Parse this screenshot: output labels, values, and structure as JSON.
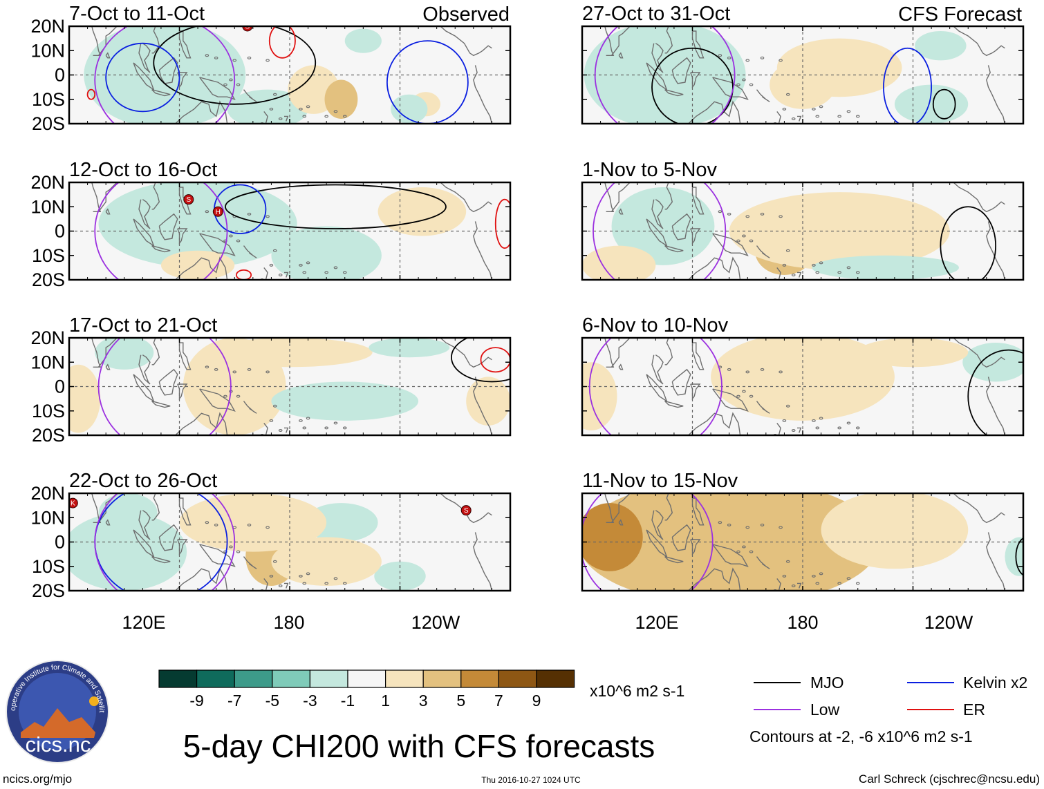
{
  "title": "5-day CHI200 with CFS forecasts",
  "headers": {
    "observed": "Observed",
    "forecast": "CFS Forecast"
  },
  "footer": {
    "url": "ncics.org/mjo",
    "timestamp": "Thu 2016-10-27 1024 UTC",
    "author": "Carl Schreck (cjschrec@ncsu.edu)",
    "logo_text": "cics.nc",
    "logo_ring_text": "Cooperative Institute for Climate and Satellites"
  },
  "colors": {
    "mjo": "#000000",
    "kelvin": "#0a1fe0",
    "low": "#9b30e0",
    "er": "#e01010",
    "coast": "#6e6e6e"
  },
  "chart_data": {
    "type": "heatmap",
    "variable": "5-day mean 200-hPa velocity potential (CHI200) anomaly",
    "units": "x10^6 m2 s-1",
    "lon_range": [
      60,
      300
    ],
    "lat_range": [
      -20,
      20
    ],
    "lat_ticks": [
      "20N",
      "10N",
      "0",
      "10S",
      "20S"
    ],
    "lat_tick_values": [
      20,
      10,
      0,
      -10,
      -20
    ],
    "lon_ticks": [
      "120E",
      "180",
      "120W"
    ],
    "lon_tick_values": [
      120,
      180,
      240
    ],
    "colorbar": {
      "ticks": [
        "-9",
        "-7",
        "-5",
        "-3",
        "-1",
        "1",
        "3",
        "5",
        "7",
        "9"
      ],
      "bounds": [
        -11,
        -9,
        -7,
        -5,
        -3,
        -1,
        1,
        3,
        5,
        7,
        9,
        11
      ],
      "colors": [
        "#053b31",
        "#0f6b5c",
        "#3d9b8a",
        "#7fcbb9",
        "#c4e8de",
        "#f6f6f6",
        "#f6e4bd",
        "#e3c17f",
        "#c48a38",
        "#8e5714",
        "#553003"
      ],
      "units_label": "x10^6 m2 s-1"
    },
    "legend": [
      {
        "name": "MJO",
        "color": "#000000"
      },
      {
        "name": "Kelvin x2",
        "color": "#0a1fe0"
      },
      {
        "name": "Low",
        "color": "#9b30e0"
      },
      {
        "name": "ER",
        "color": "#e01010"
      }
    ],
    "contour_note": "Contours at -2, -6 x10^6 m2 s-1",
    "panels": [
      {
        "title": "7-Oct to 11-Oct",
        "source": "observed",
        "blobs": [
          {
            "lon": 95,
            "lat": -8,
            "a": 14,
            "b": 9,
            "value": -9
          },
          {
            "lon": 100,
            "lat": 2,
            "a": 24,
            "b": 15,
            "value": -6
          },
          {
            "lon": 120,
            "lat": 10,
            "a": 10,
            "b": 10,
            "value": -6
          },
          {
            "lon": 112,
            "lat": 0,
            "a": 44,
            "b": 22,
            "value": -3
          },
          {
            "lon": 168,
            "lat": -14,
            "a": 22,
            "b": 8,
            "value": -3
          },
          {
            "lon": 220,
            "lat": 14,
            "a": 10,
            "b": 5,
            "value": -2
          },
          {
            "lon": 193,
            "lat": -6,
            "a": 14,
            "b": 10,
            "value": 2
          },
          {
            "lon": 208,
            "lat": -10,
            "a": 9,
            "b": 8,
            "value": 4
          },
          {
            "lon": 254,
            "lat": -12,
            "a": 8,
            "b": 5,
            "value": 2
          },
          {
            "lon": 245,
            "lat": -14,
            "a": 10,
            "b": 6,
            "value": -2
          }
        ],
        "contours": [
          {
            "kind": "mjo",
            "lon": 150,
            "lat": 5,
            "a": 44,
            "b": 17
          },
          {
            "kind": "kelvin",
            "lon": 100,
            "lat": -1,
            "a": 20,
            "b": 14
          },
          {
            "kind": "kelvin",
            "lon": 255,
            "lat": -3,
            "a": 22,
            "b": 17
          },
          {
            "kind": "low",
            "lon": 112,
            "lat": -2,
            "a": 38,
            "b": 26
          },
          {
            "kind": "er",
            "lon": 176,
            "lat": 14,
            "a": 7,
            "b": 7
          },
          {
            "kind": "er",
            "lon": 72,
            "lat": -8,
            "a": 2,
            "b": 2
          }
        ],
        "storms": [
          {
            "lon": 157,
            "lat": 20,
            "label": "S"
          }
        ]
      },
      {
        "title": "12-Oct to 16-Oct",
        "source": "observed",
        "blobs": [
          {
            "lon": 127,
            "lat": 10,
            "a": 9,
            "b": 8,
            "value": -9
          },
          {
            "lon": 141,
            "lat": 9,
            "a": 9,
            "b": 7,
            "value": -9
          },
          {
            "lon": 132,
            "lat": 9,
            "a": 26,
            "b": 11,
            "value": -6
          },
          {
            "lon": 130,
            "lat": 3,
            "a": 54,
            "b": 18,
            "value": -3
          },
          {
            "lon": 204,
            "lat": -14,
            "a": 18,
            "b": 7,
            "value": -5
          },
          {
            "lon": 200,
            "lat": -10,
            "a": 30,
            "b": 12,
            "value": -3
          },
          {
            "lon": 255,
            "lat": 5,
            "a": 12,
            "b": 6,
            "value": 3
          },
          {
            "lon": 252,
            "lat": 8,
            "a": 24,
            "b": 10,
            "value": 2
          },
          {
            "lon": 130,
            "lat": -14,
            "a": 20,
            "b": 6,
            "value": 2
          }
        ],
        "contours": [
          {
            "kind": "mjo",
            "lon": 205,
            "lat": 10,
            "a": 60,
            "b": 9
          },
          {
            "kind": "kelvin",
            "lon": 153,
            "lat": 9,
            "a": 14,
            "b": 10
          },
          {
            "kind": "low",
            "lon": 110,
            "lat": 0,
            "a": 36,
            "b": 26
          },
          {
            "kind": "er",
            "lon": 297,
            "lat": 3,
            "a": 5,
            "b": 10
          },
          {
            "kind": "er",
            "lon": 155,
            "lat": -18,
            "a": 4,
            "b": 2
          }
        ],
        "storms": [
          {
            "lon": 125,
            "lat": 13,
            "label": "S"
          },
          {
            "lon": 141,
            "lat": 8,
            "label": "H"
          }
        ]
      },
      {
        "title": "17-Oct to 21-Oct",
        "source": "observed",
        "blobs": [
          {
            "lon": 160,
            "lat": -5,
            "a": 12,
            "b": 12,
            "value": 3
          },
          {
            "lon": 150,
            "lat": 0,
            "a": 28,
            "b": 20,
            "value": 2
          },
          {
            "lon": 180,
            "lat": 14,
            "a": 45,
            "b": 6,
            "value": 1.5
          },
          {
            "lon": 288,
            "lat": -6,
            "a": 12,
            "b": 10,
            "value": 2
          },
          {
            "lon": 65,
            "lat": -5,
            "a": 12,
            "b": 14,
            "value": 2
          },
          {
            "lon": 90,
            "lat": 14,
            "a": 16,
            "b": 7,
            "value": -2
          },
          {
            "lon": 210,
            "lat": -6,
            "a": 40,
            "b": 8,
            "value": -2
          },
          {
            "lon": 245,
            "lat": 16,
            "a": 22,
            "b": 4,
            "value": -2
          }
        ],
        "contours": [
          {
            "kind": "mjo",
            "lon": 290,
            "lat": 12,
            "a": 22,
            "b": 10
          },
          {
            "kind": "er",
            "lon": 292,
            "lat": 11,
            "a": 8,
            "b": 5
          },
          {
            "kind": "low",
            "lon": 112,
            "lat": 0,
            "a": 36,
            "b": 27
          }
        ],
        "storms": []
      },
      {
        "title": "22-Oct to 26-Oct",
        "source": "observed",
        "blobs": [
          {
            "lon": 72,
            "lat": -9,
            "a": 8,
            "b": 5,
            "value": -8
          },
          {
            "lon": 82,
            "lat": -7,
            "a": 18,
            "b": 10,
            "value": -6
          },
          {
            "lon": 90,
            "lat": -4,
            "a": 34,
            "b": 16,
            "value": -3
          },
          {
            "lon": 92,
            "lat": 12,
            "a": 16,
            "b": 8,
            "value": -2
          },
          {
            "lon": 208,
            "lat": 8,
            "a": 20,
            "b": 8,
            "value": -2
          },
          {
            "lon": 240,
            "lat": -14,
            "a": 14,
            "b": 6,
            "value": -2
          },
          {
            "lon": 170,
            "lat": -6,
            "a": 14,
            "b": 12,
            "value": 3
          },
          {
            "lon": 160,
            "lat": 8,
            "a": 40,
            "b": 12,
            "value": 2
          },
          {
            "lon": 200,
            "lat": -8,
            "a": 30,
            "b": 10,
            "value": 2
          }
        ],
        "contours": [
          {
            "kind": "kelvin",
            "lon": 110,
            "lat": 0,
            "a": 36,
            "b": 24
          },
          {
            "kind": "low",
            "lon": 112,
            "lat": 0,
            "a": 38,
            "b": 27
          }
        ],
        "storms": [
          {
            "lon": 62,
            "lat": 16,
            "label": "K"
          },
          {
            "lon": 276,
            "lat": 13,
            "label": "S"
          }
        ]
      },
      {
        "title": "27-Oct to 31-Oct",
        "source": "forecast",
        "blobs": [
          {
            "lon": 98,
            "lat": 0,
            "a": 10,
            "b": 6,
            "value": -9
          },
          {
            "lon": 104,
            "lat": 0,
            "a": 24,
            "b": 12,
            "value": -6
          },
          {
            "lon": 105,
            "lat": 0,
            "a": 44,
            "b": 22,
            "value": -3
          },
          {
            "lon": 250,
            "lat": -12,
            "a": 20,
            "b": 8,
            "value": -3
          },
          {
            "lon": 255,
            "lat": 12,
            "a": 14,
            "b": 6,
            "value": -2
          },
          {
            "lon": 200,
            "lat": 3,
            "a": 34,
            "b": 12,
            "value": 2
          },
          {
            "lon": 180,
            "lat": -4,
            "a": 18,
            "b": 10,
            "value": 1.5
          }
        ],
        "contours": [
          {
            "kind": "kelvin",
            "lon": 237,
            "lat": -5,
            "a": 13,
            "b": 16
          },
          {
            "kind": "mjo",
            "lon": 120,
            "lat": -5,
            "a": 22,
            "b": 16
          },
          {
            "kind": "mjo",
            "lon": 257,
            "lat": -12,
            "a": 6,
            "b": 6
          },
          {
            "kind": "low",
            "lon": 105,
            "lat": 0,
            "a": 38,
            "b": 27
          }
        ],
        "storms": []
      },
      {
        "title": "1-Nov to 5-Nov",
        "source": "forecast",
        "blobs": [
          {
            "lon": 110,
            "lat": 4,
            "a": 10,
            "b": 10,
            "value": -5
          },
          {
            "lon": 104,
            "lat": 2,
            "a": 28,
            "b": 16,
            "value": -3
          },
          {
            "lon": 170,
            "lat": -8,
            "a": 16,
            "b": 10,
            "value": 3
          },
          {
            "lon": 200,
            "lat": 0,
            "a": 60,
            "b": 16,
            "value": 2
          },
          {
            "lon": 80,
            "lat": -14,
            "a": 20,
            "b": 8,
            "value": 1.5
          },
          {
            "lon": 225,
            "lat": -15,
            "a": 40,
            "b": 5,
            "value": -2
          }
        ],
        "contours": [
          {
            "kind": "mjo",
            "lon": 270,
            "lat": -6,
            "a": 15,
            "b": 16
          },
          {
            "kind": "low",
            "lon": 102,
            "lat": 0,
            "a": 36,
            "b": 27
          }
        ],
        "storms": []
      },
      {
        "title": "6-Nov to 10-Nov",
        "source": "forecast",
        "blobs": [
          {
            "lon": 65,
            "lat": -4,
            "a": 14,
            "b": 14,
            "value": 2
          },
          {
            "lon": 180,
            "lat": 4,
            "a": 50,
            "b": 18,
            "value": 1.5
          },
          {
            "lon": 285,
            "lat": 10,
            "a": 18,
            "b": 8,
            "value": -2
          },
          {
            "lon": 240,
            "lat": 14,
            "a": 30,
            "b": 6,
            "value": 1.5
          }
        ],
        "contours": [
          {
            "kind": "mjo",
            "lon": 292,
            "lat": -4,
            "a": 22,
            "b": 19
          },
          {
            "kind": "low",
            "lon": 100,
            "lat": 0,
            "a": 36,
            "b": 27
          }
        ],
        "storms": []
      },
      {
        "title": "11-Nov to 15-Nov",
        "source": "forecast",
        "blobs": [
          {
            "lon": 150,
            "lat": 3,
            "a": 26,
            "b": 10,
            "value": 7
          },
          {
            "lon": 150,
            "lat": 3,
            "a": 42,
            "b": 16,
            "value": 5
          },
          {
            "lon": 140,
            "lat": 0,
            "a": 82,
            "b": 26,
            "value": 3
          },
          {
            "lon": 75,
            "lat": 2,
            "a": 18,
            "b": 14,
            "value": 5
          },
          {
            "lon": 230,
            "lat": 5,
            "a": 40,
            "b": 16,
            "value": 1.5
          },
          {
            "lon": 298,
            "lat": -6,
            "a": 8,
            "b": 8,
            "value": -3
          }
        ],
        "contours": [
          {
            "kind": "low",
            "lon": 95,
            "lat": 0,
            "a": 36,
            "b": 27
          },
          {
            "kind": "mjo",
            "lon": 302,
            "lat": -6,
            "a": 6,
            "b": 8
          }
        ],
        "storms": []
      }
    ]
  }
}
